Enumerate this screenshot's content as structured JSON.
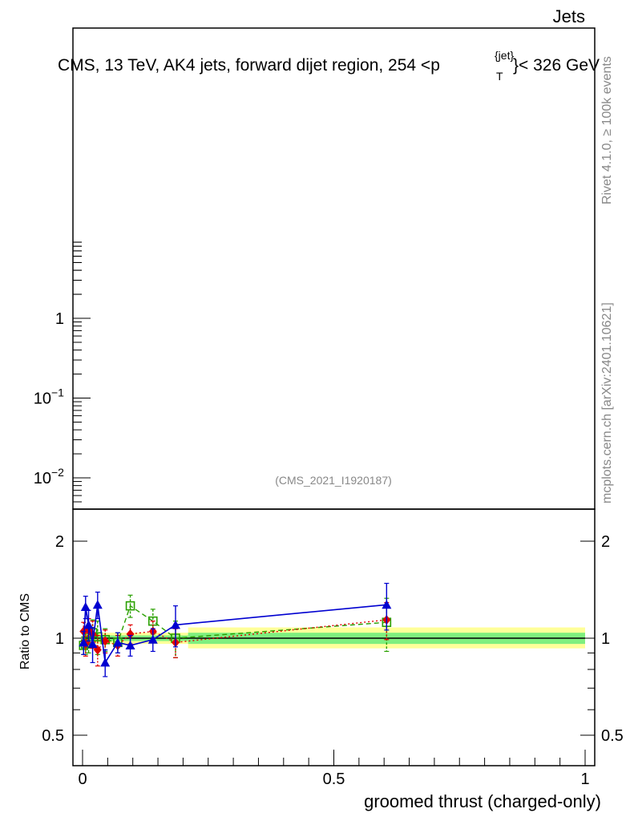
{
  "header": {
    "top_right": "Jets",
    "title_main": "CMS, 13 TeV, AK4 jets, forward dijet region, 254 <p",
    "title_sup": "{jet}",
    "title_sub": "T",
    "title_end": "}< 326 GeV",
    "analysis_id": "(CMS_2021_I1920187)"
  },
  "side_labels": {
    "rivet": "Rivet 4.1.0, ≥ 100k events",
    "mcplots": "mcplots.cern.ch [arXiv:2401.10621]"
  },
  "chart_data": [
    {
      "panel": "main",
      "type": "scatter",
      "yscale": "log",
      "y_ticks": [
        {
          "value": 1,
          "base": "1",
          "exp": ""
        },
        {
          "value": 0.1,
          "base": "10",
          "exp": "−1"
        },
        {
          "value": 0.01,
          "base": "10",
          "exp": "−2"
        }
      ],
      "series": []
    },
    {
      "panel": "ratio",
      "type": "line",
      "xlabel": "groomed thrust (charged-only)",
      "ylabel": "Ratio to CMS",
      "xlim": [
        0,
        1
      ],
      "x_ticks": [
        "0",
        "0.5",
        "1"
      ],
      "y_ticks": [
        {
          "value": 2,
          "label": "2"
        },
        {
          "value": 1,
          "label": "1"
        },
        {
          "value": 0.5,
          "label": "0.5"
        }
      ],
      "reference": {
        "bands": [
          {
            "x": [
              0,
              0.21
            ],
            "inner": [
              0.98,
              1.02
            ],
            "outer": [
              0.96,
              1.04
            ]
          },
          {
            "x": [
              0.21,
              1
            ],
            "inner": [
              0.96,
              1.04
            ],
            "outer": [
              0.93,
              1.08
            ]
          }
        ],
        "colors": {
          "inner": "#7fef7f",
          "outer": "#ffff99",
          "line": "#000000"
        }
      },
      "series": [
        {
          "color": "#2aa000",
          "dash": "6,4",
          "marker": "square",
          "points": [
            {
              "x": 0.002,
              "y": 0.95,
              "err": 0.06
            },
            {
              "x": 0.006,
              "y": 0.96,
              "err": 0.07
            },
            {
              "x": 0.012,
              "y": 0.98,
              "err": 0.08
            },
            {
              "x": 0.02,
              "y": 1.04,
              "err": 0.1
            },
            {
              "x": 0.03,
              "y": 1.01,
              "err": 0.12
            },
            {
              "x": 0.045,
              "y": 0.99,
              "err": 0.08
            },
            {
              "x": 0.07,
              "y": 0.97,
              "err": 0.07
            },
            {
              "x": 0.095,
              "y": 1.26,
              "err": 0.1
            },
            {
              "x": 0.14,
              "y": 1.13,
              "err": 0.1
            },
            {
              "x": 0.185,
              "y": 1.0,
              "err": 0.13
            },
            {
              "x": 0.605,
              "y": 1.12,
              "err": 0.21
            }
          ]
        },
        {
          "color": "#e00000",
          "dash": "2,3",
          "marker": "diamond",
          "points": [
            {
              "x": 0.002,
              "y": 1.05,
              "err": 0.07
            },
            {
              "x": 0.006,
              "y": 0.96,
              "err": 0.08
            },
            {
              "x": 0.012,
              "y": 1.06,
              "err": 0.09
            },
            {
              "x": 0.02,
              "y": 1.03,
              "err": 0.1
            },
            {
              "x": 0.03,
              "y": 0.92,
              "err": 0.1
            },
            {
              "x": 0.045,
              "y": 0.98,
              "err": 0.08
            },
            {
              "x": 0.07,
              "y": 0.95,
              "err": 0.07
            },
            {
              "x": 0.095,
              "y": 1.03,
              "err": 0.07
            },
            {
              "x": 0.14,
              "y": 1.05,
              "err": 0.08
            },
            {
              "x": 0.185,
              "y": 0.97,
              "err": 0.1
            },
            {
              "x": 0.605,
              "y": 1.14,
              "err": 0.15
            }
          ]
        },
        {
          "color": "#0000d0",
          "dash": "",
          "marker": "triangle",
          "points": [
            {
              "x": 0.002,
              "y": 0.97,
              "err": 0.08
            },
            {
              "x": 0.006,
              "y": 1.25,
              "err": 0.1
            },
            {
              "x": 0.012,
              "y": 1.1,
              "err": 0.12
            },
            {
              "x": 0.02,
              "y": 0.96,
              "err": 0.12
            },
            {
              "x": 0.03,
              "y": 1.27,
              "err": 0.12
            },
            {
              "x": 0.045,
              "y": 0.84,
              "err": 0.08
            },
            {
              "x": 0.07,
              "y": 0.97,
              "err": 0.07
            },
            {
              "x": 0.095,
              "y": 0.95,
              "err": 0.07
            },
            {
              "x": 0.14,
              "y": 0.99,
              "err": 0.08
            },
            {
              "x": 0.185,
              "y": 1.1,
              "err": 0.16
            },
            {
              "x": 0.605,
              "y": 1.27,
              "err": 0.21
            }
          ]
        }
      ]
    }
  ]
}
